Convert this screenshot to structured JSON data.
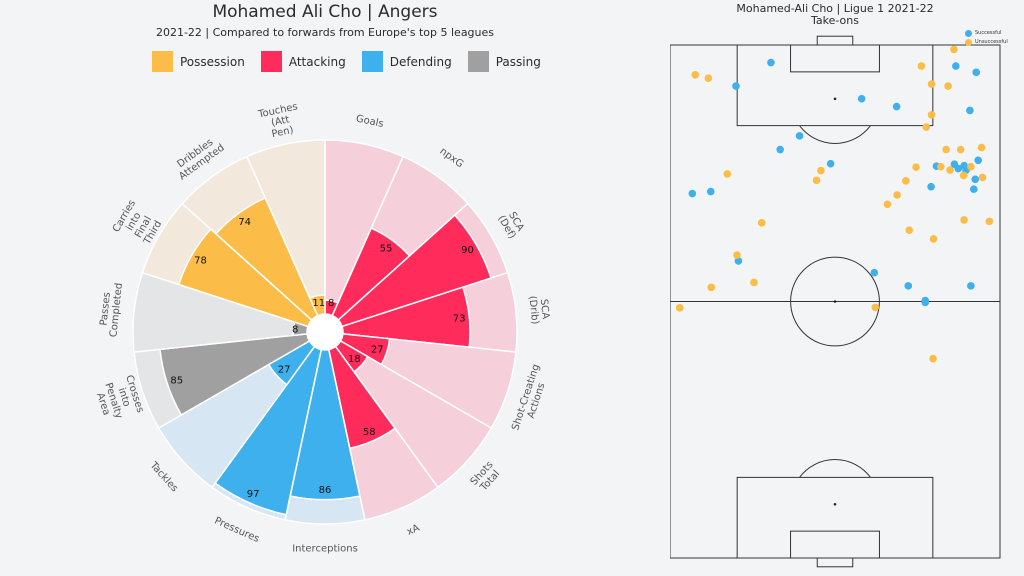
{
  "radar": {
    "title": "Mohamed Ali Cho | Angers",
    "subtitle": "2021-22 | Compared to forwards from Europe's top 5 leagues",
    "legend": [
      {
        "label": "Possession",
        "color": "#fbbc48"
      },
      {
        "label": "Attacking",
        "color": "#ff2b5b"
      },
      {
        "label": "Defending",
        "color": "#3eb0ee"
      },
      {
        "label": "Passing",
        "color": "#a0a0a0"
      }
    ]
  },
  "pitch": {
    "title": "Mohamed-Ali Cho | Ligue 1 2021-22",
    "subtitle": "Take-ons",
    "legend": [
      {
        "label": "Successful",
        "color": "#3eb0ee"
      },
      {
        "label": "Unsuccessful",
        "color": "#fbbc48"
      }
    ]
  },
  "chart_data": [
    {
      "type": "pie",
      "subtype": "polar-bar",
      "title": "Mohamed Ali Cho | Angers",
      "range": [
        0,
        100
      ],
      "categories": [
        "Goals",
        "npxG",
        "SCA (Def)",
        "SCA (Drib)",
        "Shot-Creating Actions",
        "Shots Total",
        "xA",
        "Interceptions",
        "Pressures",
        "Tackles",
        "Crosses into Penalty Area",
        "Passes Completed",
        "Carries into Final Third",
        "Dribbles Attempted",
        "Touches (Att Pen)"
      ],
      "label_lines": [
        [
          "Goals"
        ],
        [
          "npxG"
        ],
        [
          "SCA",
          "(Def)"
        ],
        [
          "SCA",
          "(Drib)"
        ],
        [
          "Shot-Creating",
          "Actions"
        ],
        [
          "Shots",
          "Total"
        ],
        [
          "xA"
        ],
        [
          "Interceptions"
        ],
        [
          "Pressures"
        ],
        [
          "Tackles"
        ],
        [
          "Crosses",
          "into",
          "Penalty",
          "Area"
        ],
        [
          "Passes",
          "Completed"
        ],
        [
          "Carries",
          "into",
          "Final",
          "Third"
        ],
        [
          "Dribbles",
          "Attempted"
        ],
        [
          "Touches",
          "(Att",
          "Pen)"
        ]
      ],
      "groups": [
        "Attacking",
        "Attacking",
        "Attacking",
        "Attacking",
        "Attacking",
        "Attacking",
        "Attacking",
        "Defending",
        "Defending",
        "Defending",
        "Passing",
        "Passing",
        "Possession",
        "Possession",
        "Possession"
      ],
      "values": [
        8,
        55,
        90,
        73,
        27,
        18,
        58,
        86,
        97,
        27,
        85,
        8,
        78,
        74,
        11
      ],
      "background_colors": {
        "Attacking": "#f5cfda",
        "Defending": "#d6e6f3",
        "Passing": "#e4e5e6",
        "Possession": "#f3e8dc"
      }
    },
    {
      "type": "scatter",
      "title": "Mohamed-Ali Cho | Ligue 1 2021-22",
      "subtitle": "Take-ons",
      "xlim": [
        0,
        68
      ],
      "ylim": [
        0,
        105
      ],
      "series": [
        {
          "name": "Successful",
          "color": "#3eb0ee",
          "points": [
            [
              20.8,
              101.4
            ],
            [
              58.9,
              100.7
            ],
            [
              63.1,
              99.4
            ],
            [
              13.6,
              96.6
            ],
            [
              39.5,
              94.0
            ],
            [
              46.7,
              92.4
            ],
            [
              61.8,
              91.6
            ],
            [
              26.7,
              86.4
            ],
            [
              22.7,
              83.6
            ],
            [
              33.1,
              80.7
            ],
            [
              54.9,
              80.2
            ],
            [
              58.6,
              80.6
            ],
            [
              60.6,
              80.3
            ],
            [
              59.4,
              79.7
            ],
            [
              61.0,
              79.4
            ],
            [
              63.5,
              81.4
            ],
            [
              62.9,
              77.5
            ],
            [
              53.8,
              76.0
            ],
            [
              62.6,
              75.5
            ],
            [
              8.4,
              75.0
            ],
            [
              4.6,
              74.6
            ],
            [
              14.1,
              60.8
            ],
            [
              42.1,
              58.4
            ],
            [
              49.1,
              55.7
            ],
            [
              62.0,
              55.7
            ],
            [
              52.6,
              52.7
            ],
            [
              52.6,
              52.3
            ]
          ]
        },
        {
          "name": "Unsuccessful",
          "color": "#fbbc48",
          "points": [
            [
              5.2,
              98.9
            ],
            [
              7.9,
              98.2
            ],
            [
              58.5,
              104.1
            ],
            [
              53.9,
              97.0
            ],
            [
              57.3,
              96.6
            ],
            [
              51.8,
              100.7
            ],
            [
              53.9,
              90.7
            ],
            [
              52.8,
              88.2
            ],
            [
              56.9,
              83.6
            ],
            [
              59.9,
              83.6
            ],
            [
              64.2,
              84.0
            ],
            [
              50.7,
              80.0
            ],
            [
              55.8,
              80.1
            ],
            [
              57.7,
              79.4
            ],
            [
              62.0,
              80.1
            ],
            [
              64.4,
              77.9
            ],
            [
              60.5,
              78.3
            ],
            [
              31.1,
              79.3
            ],
            [
              30.2,
              77.3
            ],
            [
              11.8,
              78.6
            ],
            [
              48.6,
              77.2
            ],
            [
              46.8,
              74.3
            ],
            [
              44.8,
              72.4
            ],
            [
              18.9,
              68.6
            ],
            [
              49.3,
              67.1
            ],
            [
              54.3,
              65.3
            ],
            [
              60.6,
              69.2
            ],
            [
              65.8,
              68.9
            ],
            [
              13.8,
              62.0
            ],
            [
              17.3,
              56.4
            ],
            [
              8.5,
              55.4
            ],
            [
              42.3,
              51.3
            ],
            [
              2.0,
              51.2
            ],
            [
              54.2,
              40.8
            ]
          ]
        }
      ]
    }
  ]
}
